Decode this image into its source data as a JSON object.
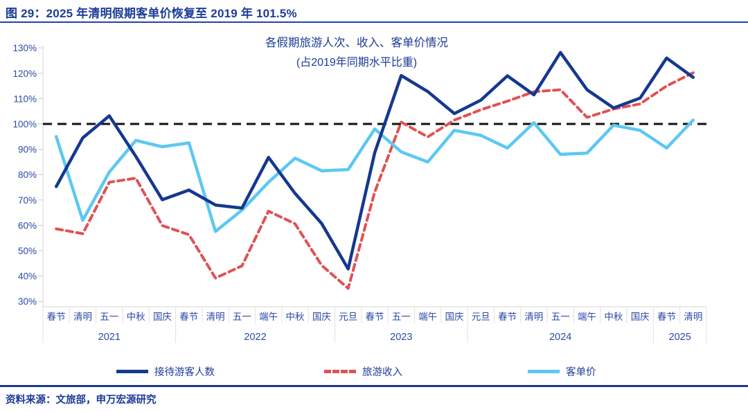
{
  "header": {
    "title": "图 29：2025 年清明假期客单价恢复至 2019 年 101.5%"
  },
  "footer": {
    "source": "资料来源：文旅部，申万宏源研究"
  },
  "colors": {
    "header_text": "#1c3c96",
    "axis_label": "#2b49a5",
    "visitors_line": "#15388f",
    "revenue_line": "#e05253",
    "price_line": "#5cc8f2",
    "reference_line": "#111111",
    "rule_blue": "#2343ae",
    "divider_navy": "#1b3a94"
  },
  "chart_data": {
    "type": "line",
    "title": "各假期旅游人次、收入、客单价情况",
    "subtitle": "(占2019年同期水平比重)",
    "ylim": [
      30,
      130
    ],
    "y_ticks": [
      "130%",
      "120%",
      "110%",
      "100%",
      "90%",
      "80%",
      "70%",
      "60%",
      "50%",
      "40%",
      "30%"
    ],
    "reference_line": {
      "value": 100,
      "style": "dashed",
      "color": "#111111"
    },
    "grid": "off",
    "legend_position": "bottom",
    "groups": [
      {
        "year": "2021",
        "labels": [
          "春节",
          "清明",
          "五一",
          "中秋",
          "国庆"
        ]
      },
      {
        "year": "2022",
        "labels": [
          "春节",
          "清明",
          "五一",
          "端午",
          "中秋",
          "国庆"
        ]
      },
      {
        "year": "2023",
        "labels": [
          "元旦",
          "春节",
          "五一",
          "端午",
          "国庆"
        ]
      },
      {
        "year": "2024",
        "labels": [
          "元旦",
          "春节",
          "清明",
          "五一",
          "端午",
          "中秋",
          "国庆"
        ]
      },
      {
        "year": "2025",
        "labels": [
          "春节",
          "清明"
        ]
      }
    ],
    "series": [
      {
        "name": "接待游客人数",
        "color": "#15388f",
        "style": "solid",
        "values": [
          75.3,
          94.5,
          103.2,
          87.2,
          70.1,
          73.9,
          68.0,
          66.8,
          86.8,
          72.6,
          60.7,
          42.8,
          88.6,
          119.1,
          112.8,
          104.1,
          109.4,
          119.0,
          111.5,
          128.2,
          113.5,
          106.3,
          110.2,
          126.0,
          118.4
        ]
      },
      {
        "name": "旅游收入",
        "color": "#e05253",
        "style": "dashed",
        "values": [
          58.6,
          56.7,
          77.0,
          78.6,
          59.9,
          56.3,
          39.2,
          44.0,
          65.6,
          60.6,
          44.2,
          35.1,
          73.1,
          100.7,
          94.9,
          101.5,
          105.6,
          109.0,
          112.7,
          113.5,
          102.6,
          105.9,
          107.9,
          115.0,
          120.2
        ]
      },
      {
        "name": "客单价",
        "color": "#5cc8f2",
        "style": "solid",
        "values": [
          95.0,
          62.0,
          81.0,
          93.5,
          91.0,
          92.5,
          57.6,
          66.0,
          77.0,
          86.5,
          81.5,
          82.0,
          98.0,
          89.0,
          85.0,
          97.5,
          95.5,
          90.5,
          100.5,
          88.0,
          88.5,
          99.5,
          97.5,
          90.5,
          101.5
        ]
      }
    ]
  }
}
